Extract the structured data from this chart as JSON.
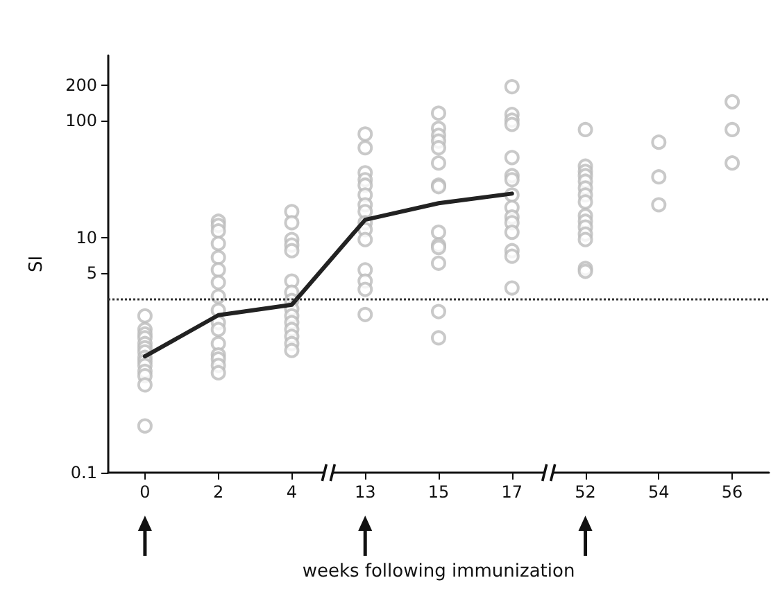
{
  "chart_data": {
    "type": "scatter",
    "xlabel": "weeks following immunization",
    "ylabel": "SI",
    "categories": [
      "0",
      "2",
      "4",
      "13",
      "15",
      "17",
      "52",
      "54",
      "56"
    ],
    "ylim": [
      0.1,
      360
    ],
    "yticks": [
      0.1,
      5,
      10,
      100,
      200
    ],
    "log": true,
    "grid": false,
    "series": [
      {
        "color": "#bbbbbb",
        "marker": "circle",
        "x": [
          "0",
          "0",
          "0",
          "0",
          "0",
          "0",
          "0",
          "0",
          "0",
          "0",
          "0",
          "0",
          "0",
          "0",
          "2",
          "2",
          "2",
          "2",
          "2",
          "2",
          "2",
          "2",
          "2",
          "2",
          "2",
          "2",
          "2",
          "2",
          "2",
          "2",
          "4",
          "4",
          "4",
          "4",
          "4",
          "4",
          "4",
          "4",
          "4",
          "4",
          "4",
          "4",
          "4",
          "4",
          "4",
          "13",
          "13",
          "13",
          "13",
          "13",
          "13",
          "13",
          "13",
          "13",
          "13",
          "13",
          "13",
          "13",
          "13",
          "13",
          "15",
          "15",
          "15",
          "15",
          "15",
          "15",
          "15",
          "15",
          "15",
          "15",
          "15",
          "15",
          "15",
          "15",
          "17",
          "17",
          "17",
          "17",
          "17",
          "17",
          "17",
          "17",
          "17",
          "17",
          "17",
          "17",
          "17",
          "17",
          "17",
          "52",
          "52",
          "52",
          "52",
          "52",
          "52",
          "52",
          "52",
          "52",
          "52",
          "52",
          "52",
          "52",
          "52",
          "52",
          "54",
          "54",
          "54",
          "56",
          "56",
          "56"
        ],
        "values": [
          2.17,
          1.66,
          1.52,
          1.41,
          1.26,
          1.16,
          1.07,
          0.96,
          0.89,
          0.82,
          0.73,
          0.67,
          0.56,
          0.25,
          13.9,
          12.8,
          11.5,
          8.97,
          6.83,
          5.35,
          4.18,
          3.18,
          2.42,
          1.9,
          1.66,
          1.26,
          1.01,
          0.93,
          0.82,
          0.71,
          16.8,
          13.5,
          9.7,
          8.7,
          7.8,
          4.3,
          3.45,
          2.93,
          2.49,
          2.17,
          1.9,
          1.66,
          1.45,
          1.26,
          1.1,
          77,
          58.8,
          36,
          31.4,
          28.2,
          23.3,
          19.2,
          16.8,
          13.5,
          11.8,
          9.7,
          5.35,
          4.3,
          3.65,
          2.23,
          116,
          86,
          75,
          67,
          58.8,
          43.6,
          28.2,
          27.4,
          11.2,
          8.7,
          8.3,
          6.1,
          2.36,
          1.41,
          195,
          113,
          101,
          93,
          48.5,
          34,
          31.4,
          23.3,
          18.2,
          15.1,
          13.5,
          11.2,
          7.8,
          7,
          3.75,
          84,
          41,
          37,
          34,
          30.5,
          26.7,
          23.3,
          20.3,
          15.5,
          13.9,
          12.4,
          10.8,
          9.7,
          5.5,
          5.2,
          65.6,
          33.2,
          19.2,
          145,
          84,
          43.6
        ]
      },
      {
        "type": "line",
        "color": "#222222",
        "marker": "none",
        "line_style": "solid",
        "values": [
          0.98,
          2.2,
          2.7,
          14.3,
          19.8,
          23.9,
          null,
          null,
          null
        ]
      }
    ],
    "ref_lines": [
      {
        "axis": "y",
        "value": 3,
        "color": "#333333",
        "line_style": "dotted"
      }
    ]
  }
}
